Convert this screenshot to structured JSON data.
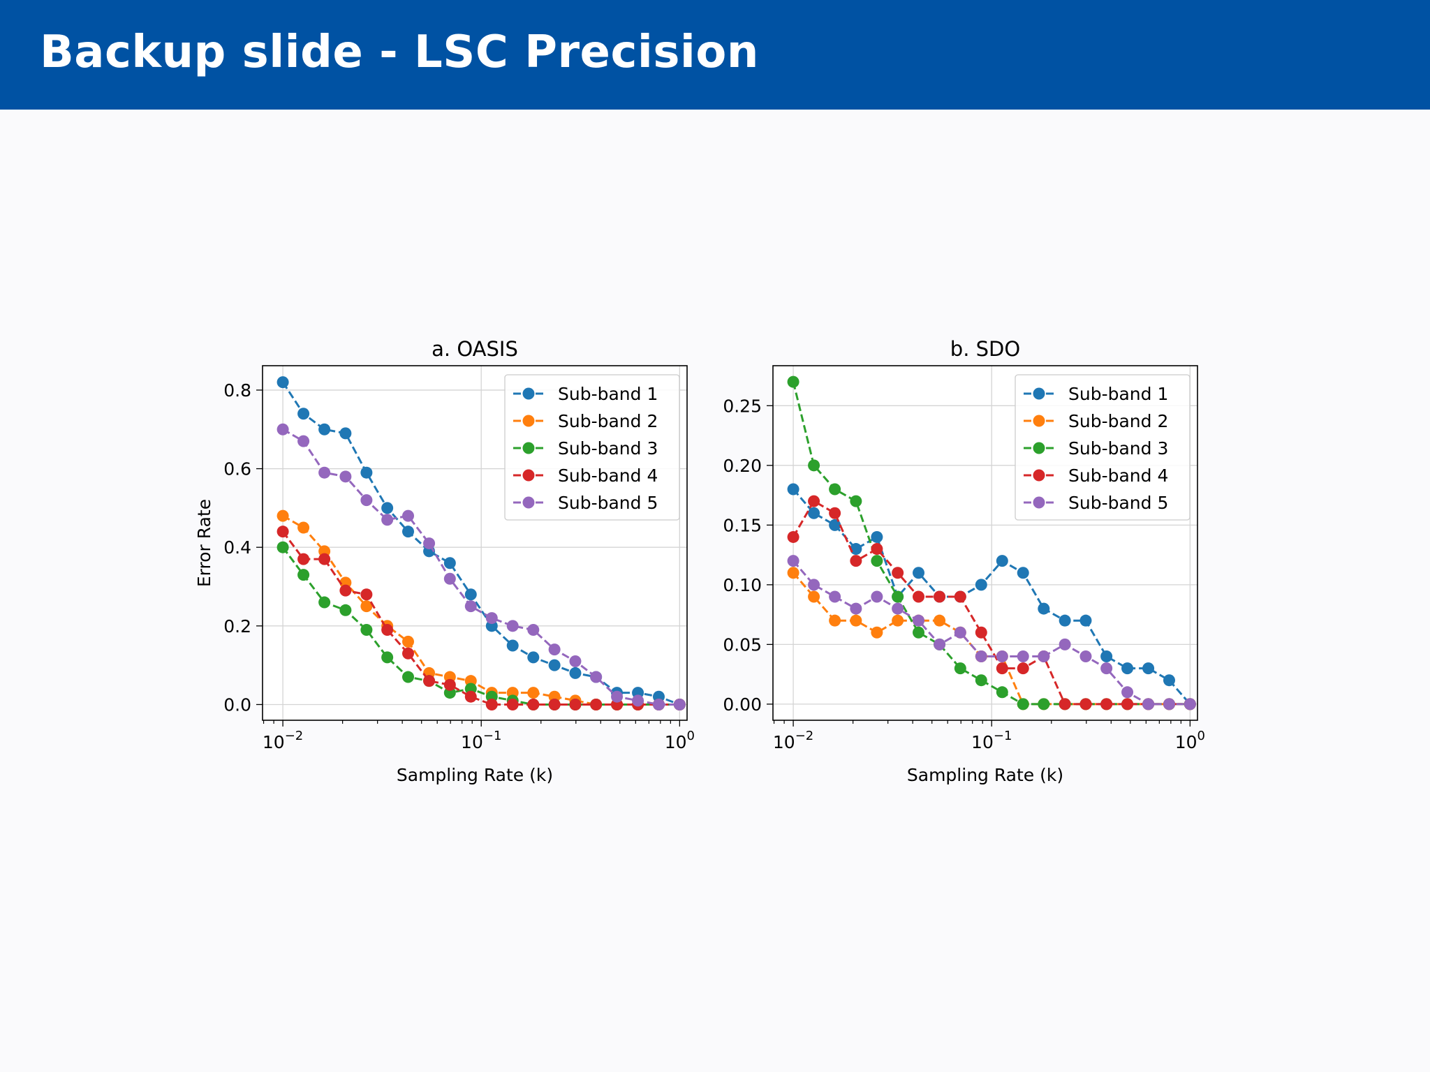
{
  "slide": {
    "title": "Backup slide - LSC Precision"
  },
  "colors": {
    "header_bg": "#0052a3",
    "series": [
      "#1f77b4",
      "#ff7f0e",
      "#2ca02c",
      "#d62728",
      "#9467bd"
    ]
  },
  "chart_data": [
    {
      "type": "line",
      "title": "a. OASIS",
      "xlabel": "Sampling Rate (k)",
      "ylabel": "Error Rate",
      "xscale": "log",
      "xlim": [
        0.0079,
        1.09
      ],
      "ylim": [
        -0.04,
        0.862
      ],
      "yticks": [
        0.0,
        0.2,
        0.4,
        0.6,
        0.8
      ],
      "ytick_labels": [
        "0.0",
        "0.2",
        "0.4",
        "0.6",
        "0.8"
      ],
      "xticks": [
        0.01,
        0.1,
        1
      ],
      "xtick_labels": [
        {
          "base": "10",
          "exp": "−2"
        },
        {
          "base": "10",
          "exp": "−1"
        },
        {
          "base": "10",
          "exp": "0"
        }
      ],
      "grid": true,
      "legend": "top-right",
      "x": [
        0.01,
        0.0127,
        0.0162,
        0.0207,
        0.0264,
        0.0336,
        0.0428,
        0.0546,
        0.0695,
        0.0886,
        0.113,
        0.144,
        0.183,
        0.234,
        0.298,
        0.379,
        0.483,
        0.616,
        0.785,
        1.0
      ],
      "series": [
        {
          "name": "Sub-band 1",
          "values": [
            0.82,
            0.74,
            0.7,
            0.69,
            0.59,
            0.5,
            0.44,
            0.39,
            0.36,
            0.28,
            0.2,
            0.15,
            0.12,
            0.1,
            0.08,
            0.07,
            0.03,
            0.03,
            0.02,
            0.0
          ]
        },
        {
          "name": "Sub-band 2",
          "values": [
            0.48,
            0.45,
            0.39,
            0.31,
            0.25,
            0.2,
            0.16,
            0.08,
            0.07,
            0.06,
            0.03,
            0.03,
            0.03,
            0.02,
            0.01,
            0.0,
            0.0,
            0.0,
            0.0,
            0.0
          ]
        },
        {
          "name": "Sub-band 3",
          "values": [
            0.4,
            0.33,
            0.26,
            0.24,
            0.19,
            0.12,
            0.07,
            0.06,
            0.03,
            0.04,
            0.02,
            0.01,
            0.0,
            0.0,
            0.0,
            0.0,
            0.0,
            0.0,
            0.0,
            0.0
          ]
        },
        {
          "name": "Sub-band 4",
          "values": [
            0.44,
            0.37,
            0.37,
            0.29,
            0.28,
            0.19,
            0.13,
            0.06,
            0.05,
            0.02,
            0.0,
            0.0,
            0.0,
            0.0,
            0.0,
            0.0,
            0.0,
            0.0,
            0.0,
            0.0
          ]
        },
        {
          "name": "Sub-band 5",
          "values": [
            0.7,
            0.67,
            0.59,
            0.58,
            0.52,
            0.47,
            0.48,
            0.41,
            0.32,
            0.25,
            0.22,
            0.2,
            0.19,
            0.14,
            0.11,
            0.07,
            0.02,
            0.01,
            0.0,
            0.0
          ]
        }
      ]
    },
    {
      "type": "line",
      "title": "b. SDO",
      "xlabel": "Sampling Rate (k)",
      "ylabel": "",
      "xscale": "log",
      "xlim": [
        0.0079,
        1.09
      ],
      "ylim": [
        -0.0135,
        0.2835
      ],
      "yticks": [
        0.0,
        0.05,
        0.1,
        0.15,
        0.2,
        0.25
      ],
      "ytick_labels": [
        "0.00",
        "0.05",
        "0.10",
        "0.15",
        "0.20",
        "0.25"
      ],
      "xticks": [
        0.01,
        0.1,
        1
      ],
      "xtick_labels": [
        {
          "base": "10",
          "exp": "−2"
        },
        {
          "base": "10",
          "exp": "−1"
        },
        {
          "base": "10",
          "exp": "0"
        }
      ],
      "grid": true,
      "legend": "top-right",
      "x": [
        0.01,
        0.0127,
        0.0162,
        0.0207,
        0.0264,
        0.0336,
        0.0428,
        0.0546,
        0.0695,
        0.0886,
        0.113,
        0.144,
        0.183,
        0.234,
        0.298,
        0.379,
        0.483,
        0.616,
        0.785,
        1.0
      ],
      "series": [
        {
          "name": "Sub-band 1",
          "values": [
            0.18,
            0.16,
            0.15,
            0.13,
            0.14,
            0.09,
            0.11,
            0.09,
            0.09,
            0.1,
            0.12,
            0.11,
            0.08,
            0.07,
            0.07,
            0.04,
            0.03,
            0.03,
            0.02,
            0.0
          ]
        },
        {
          "name": "Sub-band 2",
          "values": [
            0.11,
            0.09,
            0.07,
            0.07,
            0.06,
            0.07,
            0.07,
            0.07,
            0.06,
            0.04,
            0.04,
            0.0,
            0.0,
            0.0,
            0.0,
            0.0,
            0.0,
            0.0,
            0.0,
            0.0
          ]
        },
        {
          "name": "Sub-band 3",
          "values": [
            0.27,
            0.2,
            0.18,
            0.17,
            0.12,
            0.09,
            0.06,
            0.05,
            0.03,
            0.02,
            0.01,
            0.0,
            0.0,
            0.0,
            0.0,
            0.0,
            0.0,
            0.0,
            0.0,
            0.0
          ]
        },
        {
          "name": "Sub-band 4",
          "values": [
            0.14,
            0.17,
            0.16,
            0.12,
            0.13,
            0.11,
            0.09,
            0.09,
            0.09,
            0.06,
            0.03,
            0.03,
            0.04,
            0.0,
            0.0,
            0.0,
            0.0,
            0.0,
            0.0,
            0.0
          ]
        },
        {
          "name": "Sub-band 5",
          "values": [
            0.12,
            0.1,
            0.09,
            0.08,
            0.09,
            0.08,
            0.07,
            0.05,
            0.06,
            0.04,
            0.04,
            0.04,
            0.04,
            0.05,
            0.04,
            0.03,
            0.01,
            0.0,
            0.0,
            0.0
          ]
        }
      ]
    }
  ]
}
